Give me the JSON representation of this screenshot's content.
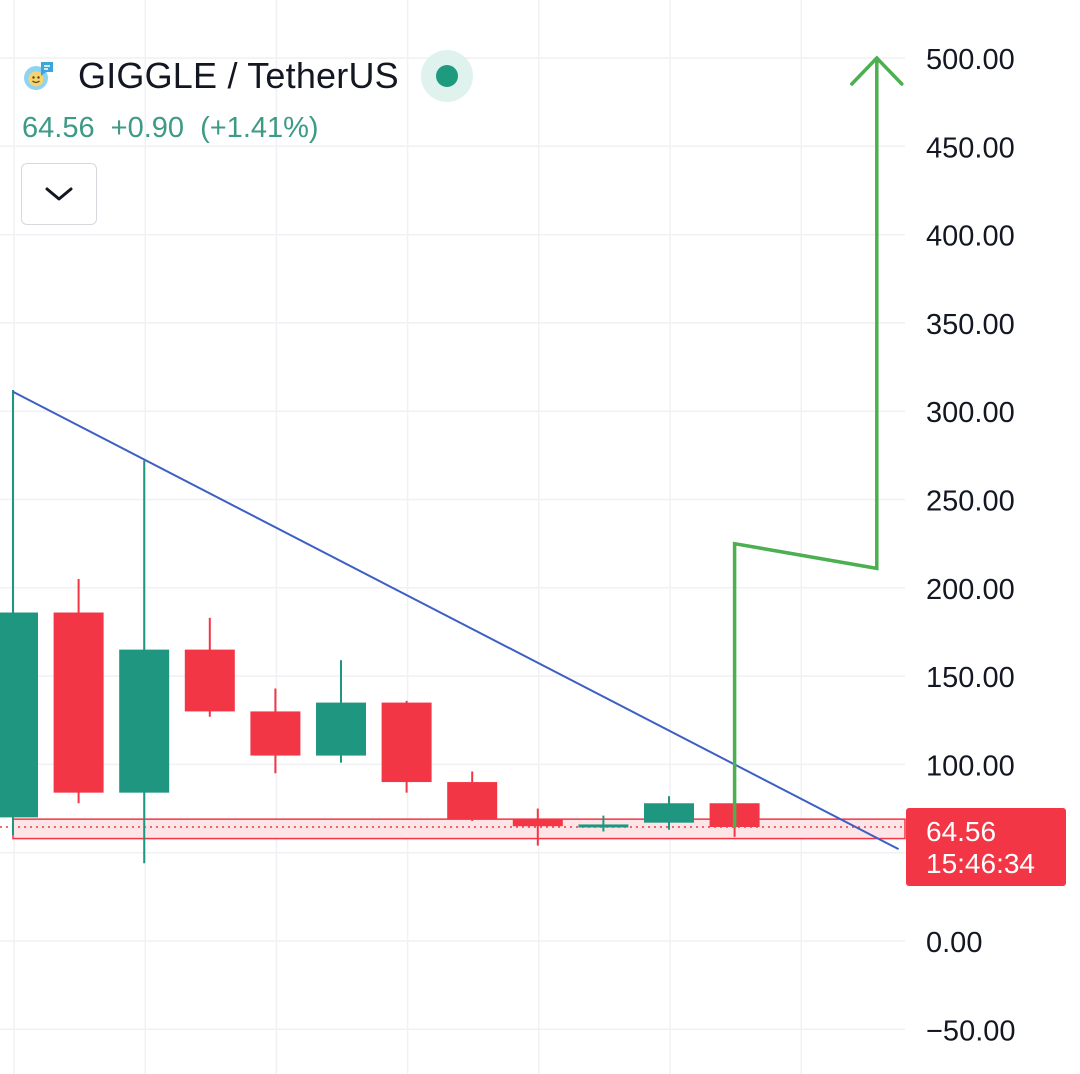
{
  "header": {
    "symbol": "GIGGLE / TetherUS",
    "last_price": "64.56",
    "change": "+0.90",
    "change_pct": "(+1.41%)",
    "logo_icon": "giggle-coin-icon",
    "status_icon": "market-open-dot-icon",
    "toggle_icon": "chevron-down-icon"
  },
  "price_tag": {
    "price": "64.56",
    "countdown": "15:46:34"
  },
  "colors": {
    "up": "#1f9680",
    "down": "#f23645",
    "trendline": "#3d5fc4",
    "projection": "#4caf50",
    "quote_text": "#3c9a86"
  },
  "chart_data": {
    "type": "candlestick",
    "title": "GIGGLE / TetherUS",
    "y_axis": {
      "ticks": [
        500,
        450,
        400,
        350,
        300,
        250,
        200,
        150,
        100,
        0,
        -50
      ],
      "tick_labels": [
        "500.00",
        "450.00",
        "400.00",
        "350.00",
        "300.00",
        "250.00",
        "200.00",
        "150.00",
        "100.00",
        "0.00",
        "−50.00"
      ],
      "range": [
        -75,
        525
      ],
      "position": "right"
    },
    "grid": true,
    "candles": [
      {
        "open": 70,
        "high": 312,
        "low": 60,
        "close": 186
      },
      {
        "open": 186,
        "high": 205,
        "low": 78,
        "close": 84
      },
      {
        "open": 84,
        "high": 272,
        "low": 44,
        "close": 165
      },
      {
        "open": 165,
        "high": 183,
        "low": 127,
        "close": 130
      },
      {
        "open": 130,
        "high": 143,
        "low": 95,
        "close": 105
      },
      {
        "open": 105,
        "high": 159,
        "low": 101,
        "close": 135
      },
      {
        "open": 135,
        "high": 136,
        "low": 84,
        "close": 90
      },
      {
        "open": 90,
        "high": 96,
        "low": 68,
        "close": 69
      },
      {
        "open": 69,
        "high": 75,
        "low": 54,
        "close": 65
      },
      {
        "open": 65,
        "high": 71,
        "low": 62,
        "close": 66
      },
      {
        "open": 67,
        "high": 82,
        "low": 63,
        "close": 78
      },
      {
        "open": 78,
        "high": 78,
        "low": 59,
        "close": 64.56
      }
    ],
    "trendline": [
      {
        "candle": 0,
        "value": 311
      },
      {
        "candle": 13.5,
        "value": 52
      }
    ],
    "support_zone": [
      58,
      69
    ],
    "last_price_line": 64.56,
    "projection_path": [
      {
        "candle": 11,
        "value": 64
      },
      {
        "candle": 11,
        "value": 225
      },
      {
        "candle": 13,
        "value": 211
      },
      {
        "candle": 13,
        "value": 500
      }
    ]
  }
}
